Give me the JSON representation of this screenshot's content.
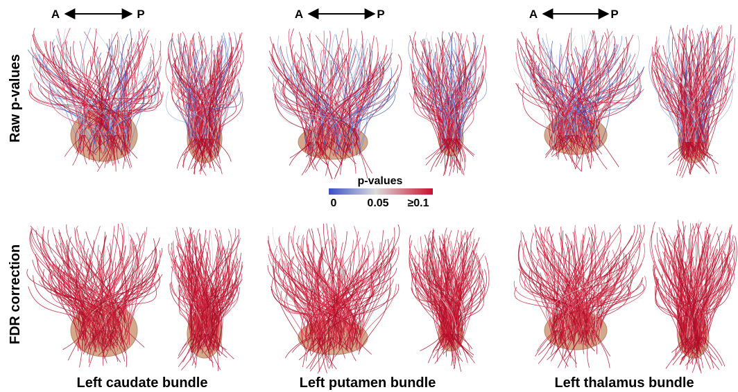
{
  "orientation_labels": [
    {
      "anterior": "A",
      "posterior": "P"
    },
    {
      "anterior": "A",
      "posterior": "P"
    },
    {
      "anterior": "A",
      "posterior": "P"
    }
  ],
  "row_labels": [
    "Raw p-values",
    "FDR correction"
  ],
  "colorbar": {
    "title": "p-values",
    "ticks": [
      "0",
      "0.05",
      "≥0.1"
    ]
  },
  "columns": [
    "Left caudate bundle",
    "Left putamen bundle",
    "Left thalamus bundle"
  ]
}
